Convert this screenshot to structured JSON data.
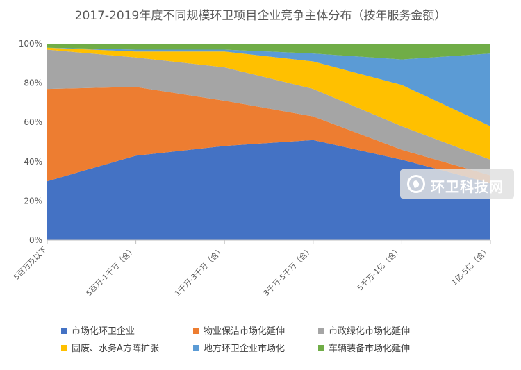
{
  "chart_data": {
    "type": "area",
    "stacked": true,
    "title": "2017-2019年度不同规模环卫项目企业竞争主体分布（按年服务金额）",
    "categories": [
      "5百万及以下",
      "5百万-1千万（含）",
      "1千万-3千万（含）",
      "3千万-5千万（含）",
      "5千万-1亿（含）",
      "1亿-5亿（含）"
    ],
    "ylim": [
      0,
      100
    ],
    "yticks": [
      "0%",
      "20%",
      "40%",
      "60%",
      "80%",
      "100%"
    ],
    "legend_position": "bottom",
    "grid": false,
    "series": [
      {
        "name": "市场化环卫企业",
        "color": "#4472C4",
        "values": [
          30,
          43,
          48,
          51,
          41,
          29
        ]
      },
      {
        "name": "物业保洁市场化延伸",
        "color": "#ED7D31",
        "values": [
          47,
          35,
          23,
          12,
          5,
          4
        ]
      },
      {
        "name": "市政绿化市场化延伸",
        "color": "#A5A5A5",
        "values": [
          20,
          15,
          17,
          14,
          12,
          8
        ]
      },
      {
        "name": "固废、水务A方阵扩张",
        "color": "#FFC000",
        "values": [
          1,
          3,
          8,
          14,
          21,
          17
        ]
      },
      {
        "name": "地方环卫企业市场化",
        "color": "#5B9BD5",
        "values": [
          0,
          1,
          1,
          4,
          13,
          37
        ]
      },
      {
        "name": "车辆装备市场化延伸",
        "color": "#70AD47",
        "values": [
          2,
          3,
          3,
          5,
          8,
          5
        ]
      }
    ]
  },
  "watermark": {
    "text": "环卫科技网",
    "icon": "leaf-logo-icon"
  }
}
